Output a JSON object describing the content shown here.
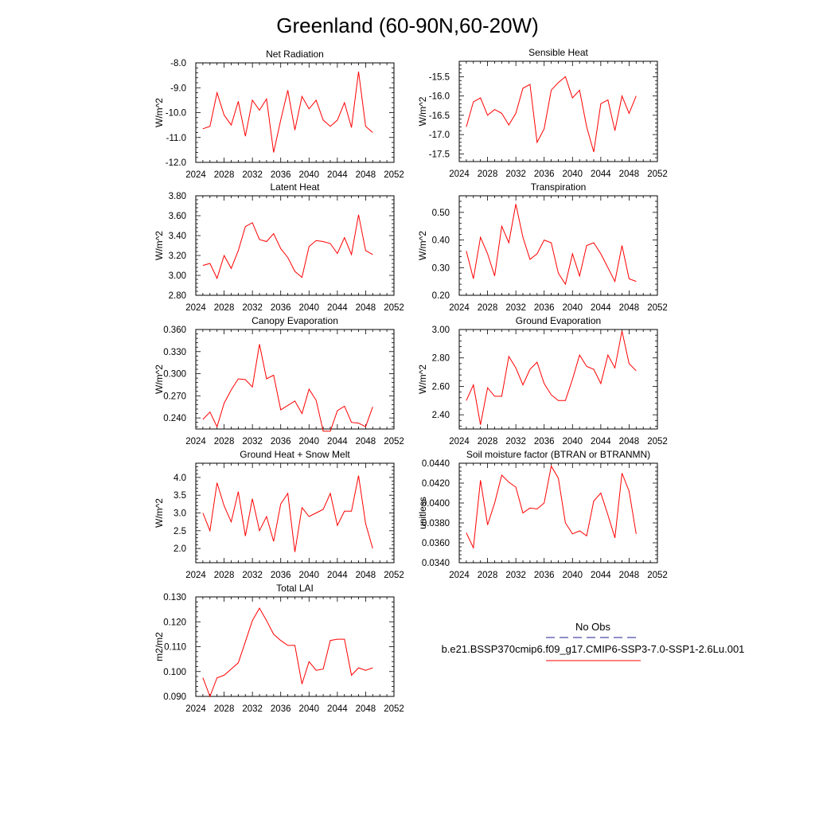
{
  "title": "Greenland (60-90N,60-20W)",
  "line_color": "#ff0000",
  "obs_color": "#4a4aa8",
  "legend": {
    "obs_label": "No Obs",
    "case_label": "b.e21.BSSP370cmip6.f09_g17.CMIP6-SSP3-7.0-SSP1-2.6Lu.001"
  },
  "chart_data": [
    {
      "type": "line",
      "title": "Net Radiation",
      "ylabel": "W/m^2",
      "xlim": [
        2024,
        2052
      ],
      "xticks": [
        "2024",
        "2028",
        "2032",
        "2036",
        "2040",
        "2044",
        "2048",
        "2052"
      ],
      "ylim": [
        -12.0,
        -8.0
      ],
      "yticks": [
        "-12.0",
        "-11.0",
        "-10.0",
        "-9.0",
        "-8.0"
      ],
      "x": [
        2025,
        2026,
        2027,
        2028,
        2029,
        2030,
        2031,
        2032,
        2033,
        2034,
        2035,
        2036,
        2037,
        2038,
        2039,
        2040,
        2041,
        2042,
        2043,
        2044,
        2045,
        2046,
        2047,
        2048,
        2049
      ],
      "values": [
        -10.65,
        -10.55,
        -9.2,
        -10.1,
        -10.5,
        -9.55,
        -10.95,
        -9.5,
        -9.9,
        -9.45,
        -11.6,
        -10.3,
        -9.1,
        -10.7,
        -9.35,
        -9.85,
        -9.5,
        -10.3,
        -10.55,
        -10.3,
        -9.6,
        -10.6,
        -8.35,
        -10.55,
        -10.8
      ]
    },
    {
      "type": "line",
      "title": "Sensible Heat",
      "ylabel": "W/m^2",
      "xlim": [
        2024,
        2052
      ],
      "xticks": [
        "2024",
        "2028",
        "2032",
        "2036",
        "2040",
        "2044",
        "2048",
        "2052"
      ],
      "ylim": [
        -17.7,
        -15.1
      ],
      "yticks": [
        "-17.5",
        "-17.0",
        "-16.5",
        "-16.0",
        "-15.5"
      ],
      "x": [
        2025,
        2026,
        2027,
        2028,
        2029,
        2030,
        2031,
        2032,
        2033,
        2034,
        2035,
        2036,
        2037,
        2038,
        2039,
        2040,
        2041,
        2042,
        2043,
        2044,
        2045,
        2046,
        2047,
        2048,
        2049
      ],
      "values": [
        -16.8,
        -16.15,
        -16.05,
        -16.5,
        -16.35,
        -16.45,
        -16.75,
        -16.45,
        -15.8,
        -15.7,
        -17.2,
        -16.85,
        -15.85,
        -15.65,
        -15.5,
        -16.05,
        -15.85,
        -16.8,
        -17.45,
        -16.2,
        -16.1,
        -16.9,
        -16.0,
        -16.45,
        -16.0
      ]
    },
    {
      "type": "line",
      "title": "Latent Heat",
      "ylabel": "W/m^2",
      "xlim": [
        2024,
        2052
      ],
      "xticks": [
        "2024",
        "2028",
        "2032",
        "2036",
        "2040",
        "2044",
        "2048",
        "2052"
      ],
      "ylim": [
        2.8,
        3.8
      ],
      "yticks": [
        "2.80",
        "3.00",
        "3.20",
        "3.40",
        "3.60",
        "3.80"
      ],
      "x": [
        2025,
        2026,
        2027,
        2028,
        2029,
        2030,
        2031,
        2032,
        2033,
        2034,
        2035,
        2036,
        2037,
        2038,
        2039,
        2040,
        2041,
        2042,
        2043,
        2044,
        2045,
        2046,
        2047,
        2048,
        2049
      ],
      "values": [
        3.1,
        3.12,
        2.97,
        3.2,
        3.07,
        3.25,
        3.49,
        3.53,
        3.36,
        3.34,
        3.42,
        3.27,
        3.18,
        3.04,
        2.98,
        3.29,
        3.35,
        3.34,
        3.32,
        3.22,
        3.38,
        3.21,
        3.61,
        3.25,
        3.21
      ]
    },
    {
      "type": "line",
      "title": "Transpiration",
      "ylabel": "W/m^2",
      "xlim": [
        2024,
        2052
      ],
      "xticks": [
        "2024",
        "2028",
        "2032",
        "2036",
        "2040",
        "2044",
        "2048",
        "2052"
      ],
      "ylim": [
        0.2,
        0.56
      ],
      "yticks": [
        "0.20",
        "0.30",
        "0.40",
        "0.50"
      ],
      "x": [
        2025,
        2026,
        2027,
        2028,
        2029,
        2030,
        2031,
        2032,
        2033,
        2034,
        2035,
        2036,
        2037,
        2038,
        2039,
        2040,
        2041,
        2042,
        2043,
        2044,
        2045,
        2046,
        2047,
        2048,
        2049
      ],
      "values": [
        0.36,
        0.26,
        0.41,
        0.35,
        0.27,
        0.45,
        0.39,
        0.53,
        0.41,
        0.33,
        0.35,
        0.4,
        0.39,
        0.28,
        0.24,
        0.35,
        0.27,
        0.38,
        0.39,
        0.35,
        0.3,
        0.25,
        0.38,
        0.26,
        0.25
      ]
    },
    {
      "type": "line",
      "title": "Canopy Evaporation",
      "ylabel": "W/m^2",
      "xlim": [
        2024,
        2052
      ],
      "xticks": [
        "2024",
        "2028",
        "2032",
        "2036",
        "2040",
        "2044",
        "2048",
        "2052"
      ],
      "ylim": [
        0.225,
        0.36
      ],
      "yticks": [
        "0.240",
        "0.270",
        "0.300",
        "0.330",
        "0.360"
      ],
      "x": [
        2025,
        2026,
        2027,
        2028,
        2029,
        2030,
        2031,
        2032,
        2033,
        2034,
        2035,
        2036,
        2037,
        2038,
        2039,
        2040,
        2041,
        2042,
        2043,
        2044,
        2045,
        2046,
        2047,
        2048,
        2049
      ],
      "values": [
        0.238,
        0.248,
        0.228,
        0.26,
        0.278,
        0.293,
        0.292,
        0.282,
        0.34,
        0.293,
        0.298,
        0.251,
        0.257,
        0.263,
        0.246,
        0.279,
        0.264,
        0.222,
        0.222,
        0.25,
        0.256,
        0.234,
        0.233,
        0.228,
        0.255
      ]
    },
    {
      "type": "line",
      "title": "Ground Evaporation",
      "ylabel": "W/m^2",
      "xlim": [
        2024,
        2052
      ],
      "xticks": [
        "2024",
        "2028",
        "2032",
        "2036",
        "2040",
        "2044",
        "2048",
        "2052"
      ],
      "ylim": [
        2.3,
        3.0
      ],
      "yticks": [
        "2.40",
        "2.60",
        "2.80",
        "3.00"
      ],
      "x": [
        2025,
        2026,
        2027,
        2028,
        2029,
        2030,
        2031,
        2032,
        2033,
        2034,
        2035,
        2036,
        2037,
        2038,
        2039,
        2040,
        2041,
        2042,
        2043,
        2044,
        2045,
        2046,
        2047,
        2048,
        2049
      ],
      "values": [
        2.5,
        2.61,
        2.33,
        2.59,
        2.53,
        2.53,
        2.81,
        2.73,
        2.61,
        2.72,
        2.77,
        2.62,
        2.54,
        2.5,
        2.5,
        2.65,
        2.82,
        2.74,
        2.72,
        2.62,
        2.82,
        2.73,
        2.99,
        2.76,
        2.71
      ]
    },
    {
      "type": "line",
      "title": "Ground Heat + Snow Melt",
      "ylabel": "W/m^2",
      "xlim": [
        2024,
        2052
      ],
      "xticks": [
        "2024",
        "2028",
        "2032",
        "2036",
        "2040",
        "2044",
        "2048",
        "2052"
      ],
      "ylim": [
        1.6,
        4.4
      ],
      "yticks": [
        "2.0",
        "2.5",
        "3.0",
        "3.5",
        "4.0"
      ],
      "x": [
        2025,
        2026,
        2027,
        2028,
        2029,
        2030,
        2031,
        2032,
        2033,
        2034,
        2035,
        2036,
        2037,
        2038,
        2039,
        2040,
        2041,
        2042,
        2043,
        2044,
        2045,
        2046,
        2047,
        2048,
        2049
      ],
      "values": [
        3.0,
        2.5,
        3.85,
        3.2,
        2.75,
        3.6,
        2.35,
        3.4,
        2.5,
        2.9,
        2.2,
        3.25,
        3.55,
        1.9,
        3.15,
        2.9,
        3.0,
        3.1,
        3.55,
        2.65,
        3.05,
        3.05,
        4.05,
        2.7,
        2.0
      ]
    },
    {
      "type": "line",
      "title": "Soil moisture factor (BTRAN or BTRANMN)",
      "ylabel": "unitless",
      "xlim": [
        2024,
        2052
      ],
      "xticks": [
        "2024",
        "2028",
        "2032",
        "2036",
        "2040",
        "2044",
        "2048",
        "2052"
      ],
      "ylim": [
        0.034,
        0.044
      ],
      "yticks": [
        "0.0340",
        "0.0360",
        "0.0380",
        "0.0400",
        "0.0420",
        "0.0440"
      ],
      "x": [
        2025,
        2026,
        2027,
        2028,
        2029,
        2030,
        2031,
        2032,
        2033,
        2034,
        2035,
        2036,
        2037,
        2038,
        2039,
        2040,
        2041,
        2042,
        2043,
        2044,
        2045,
        2046,
        2047,
        2048,
        2049
      ],
      "values": [
        0.037,
        0.0355,
        0.0423,
        0.0378,
        0.04,
        0.0428,
        0.0421,
        0.0416,
        0.039,
        0.0395,
        0.0394,
        0.04,
        0.0437,
        0.0425,
        0.038,
        0.0369,
        0.0372,
        0.0367,
        0.0402,
        0.041,
        0.0388,
        0.0365,
        0.043,
        0.0412,
        0.0369
      ]
    },
    {
      "type": "line",
      "title": "Total LAI",
      "ylabel": "m2/m2",
      "xlim": [
        2024,
        2052
      ],
      "xticks": [
        "2024",
        "2028",
        "2032",
        "2036",
        "2040",
        "2044",
        "2048",
        "2052"
      ],
      "ylim": [
        0.09,
        0.13
      ],
      "yticks": [
        "0.090",
        "0.100",
        "0.110",
        "0.120",
        "0.130"
      ],
      "x": [
        2025,
        2026,
        2027,
        2028,
        2029,
        2030,
        2031,
        2032,
        2033,
        2034,
        2035,
        2036,
        2037,
        2038,
        2039,
        2040,
        2041,
        2042,
        2043,
        2044,
        2045,
        2046,
        2047,
        2048,
        2049
      ],
      "values": [
        0.0975,
        0.09,
        0.0975,
        0.0985,
        0.101,
        0.1035,
        0.112,
        0.1205,
        0.1255,
        0.1205,
        0.115,
        0.1125,
        0.1105,
        0.1105,
        0.095,
        0.104,
        0.1005,
        0.101,
        0.1125,
        0.113,
        0.113,
        0.0985,
        0.1015,
        0.1005,
        0.1015
      ]
    }
  ]
}
